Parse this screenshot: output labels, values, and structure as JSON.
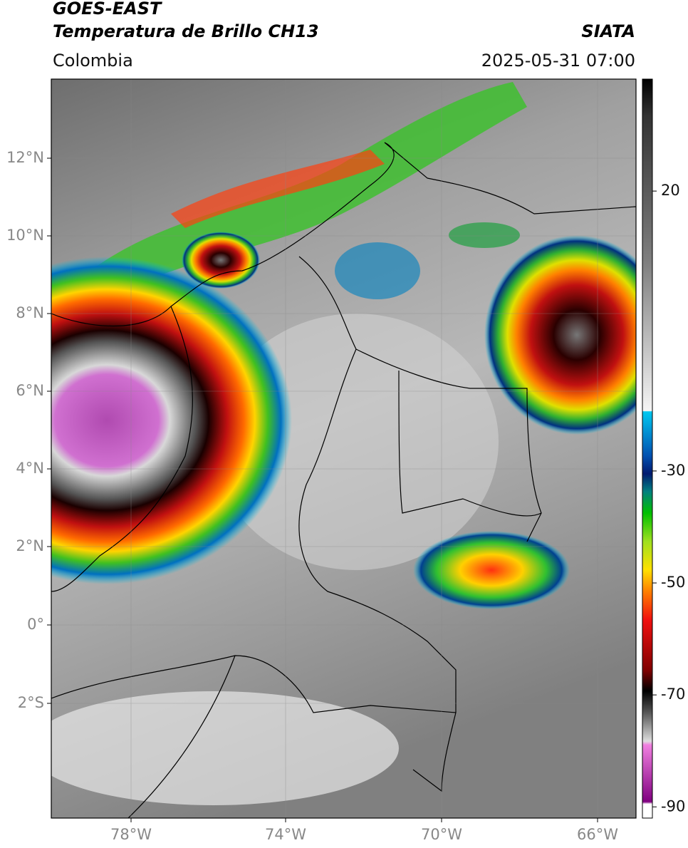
{
  "header": {
    "title_line1": "GOES-EAST",
    "title_line2": "Temperatura de Brillo CH13",
    "source": "SIATA",
    "region": "Colombia",
    "datetime": "2025-05-31 07:00"
  },
  "map": {
    "lat_labels": [
      "12°N",
      "10°N",
      "8°N",
      "6°N",
      "4°N",
      "2°N",
      "0°",
      "2°S"
    ],
    "lon_labels": [
      "78°W",
      "74°W",
      "70°W",
      "66°W"
    ]
  },
  "colorbar": {
    "lim": [
      -92,
      40
    ],
    "ticks": [
      20,
      -30,
      -50,
      -70,
      -90
    ]
  }
}
